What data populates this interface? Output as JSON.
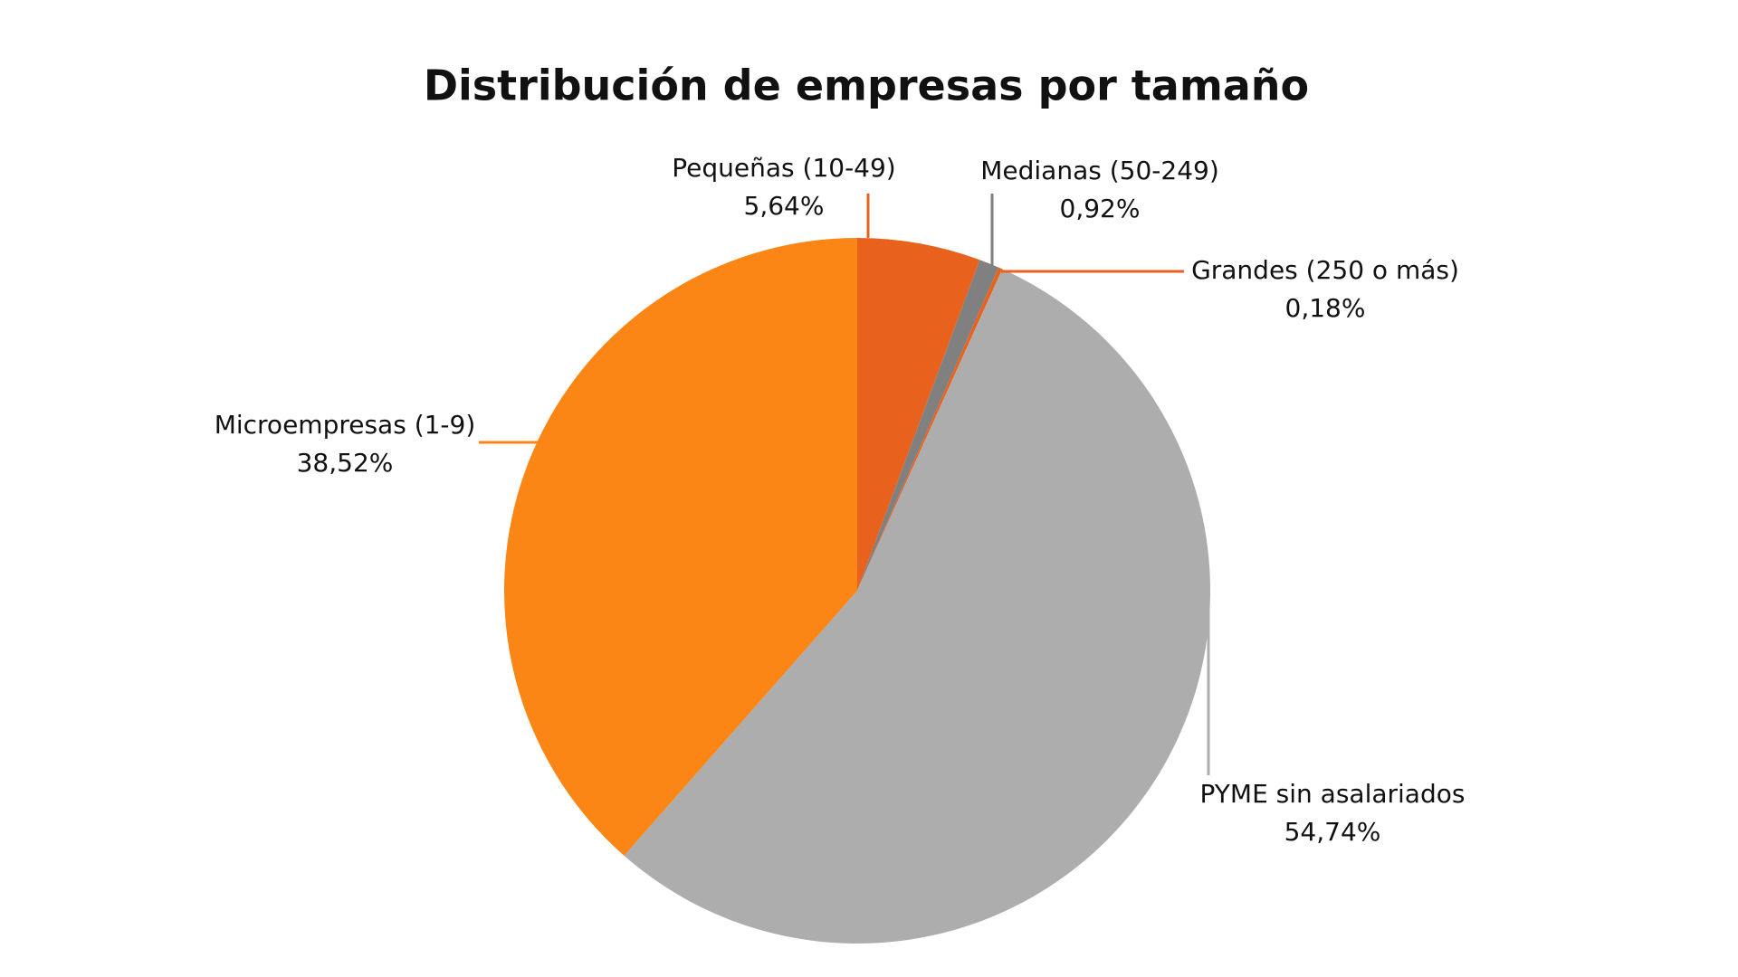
{
  "chart_data": {
    "type": "pie",
    "title": "Distribución de empresas por tamaño",
    "categories": [
      "Pequeñas (10-49)",
      "Medianas (50-249)",
      "Grandes (250 o más)",
      "PYME sin asalariados",
      "Microempresas (1-9)"
    ],
    "values": [
      5.64,
      0.92,
      0.18,
      54.74,
      38.52
    ],
    "value_labels": [
      "5,64%",
      "0,92%",
      "0,18%",
      "54,74%",
      "38,52%"
    ],
    "colors": [
      "#e8621e",
      "#808080",
      "#e8621e",
      "#adadad",
      "#fb8515"
    ]
  }
}
